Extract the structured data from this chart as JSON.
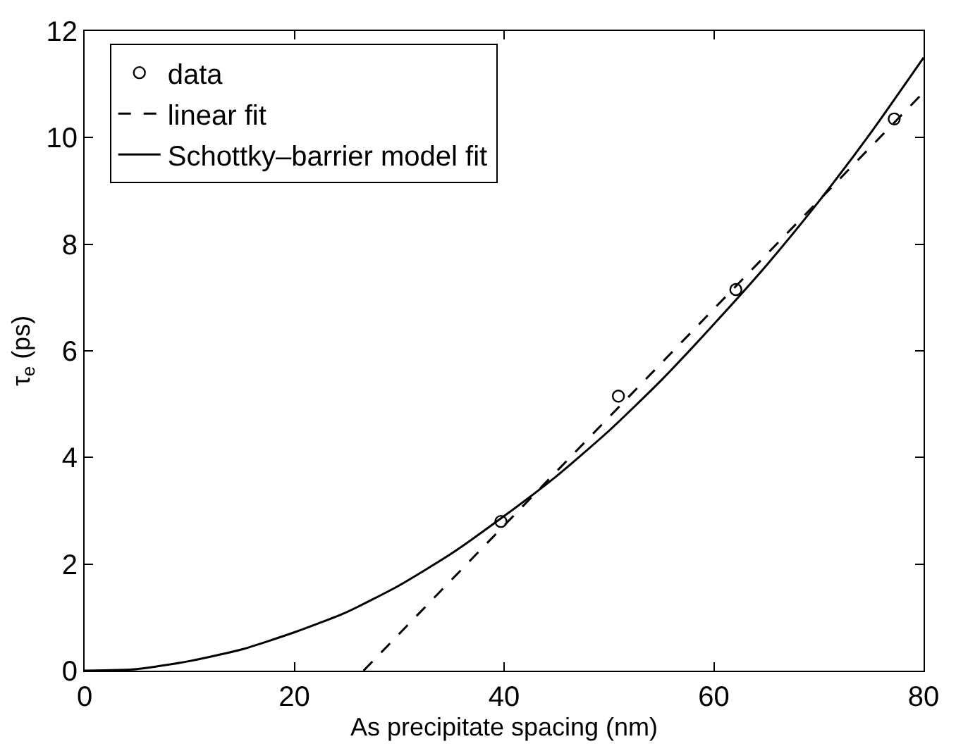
{
  "chart_data": {
    "type": "scatter",
    "xlabel": "As precipitate spacing (nm)",
    "ylabel": "τ$_{e}$ (ps)",
    "xlim": [
      0,
      80
    ],
    "xticks": [
      0,
      20,
      40,
      60,
      80
    ],
    "ylim": [
      0,
      12
    ],
    "yticks": [
      0,
      2,
      4,
      6,
      8,
      10,
      12
    ],
    "legend": "top left",
    "series": [
      {
        "name": "data",
        "marker": "circle",
        "color": "#000000",
        "x": [
          39.7,
          50.9,
          62.1,
          77.2
        ],
        "values": [
          2.8,
          5.15,
          7.15,
          10.35
        ]
      },
      {
        "name": "linear fit",
        "type": "line",
        "line_style": "dashed",
        "marker": "none",
        "color": "#000000",
        "x": [
          26.6,
          80
        ],
        "values": [
          0,
          10.85
        ]
      },
      {
        "name": "Schottky–barrier model fit",
        "type": "line",
        "line_style": "solid",
        "marker": "none",
        "color": "#000000",
        "x": [
          0,
          5,
          10,
          15,
          20,
          25,
          30,
          35,
          40,
          45,
          50,
          55,
          60,
          65,
          70,
          75,
          80
        ],
        "values": [
          0,
          0.03,
          0.18,
          0.4,
          0.72,
          1.1,
          1.6,
          2.2,
          2.9,
          3.65,
          4.5,
          5.45,
          6.5,
          7.6,
          8.8,
          10.1,
          11.5
        ]
      }
    ]
  }
}
